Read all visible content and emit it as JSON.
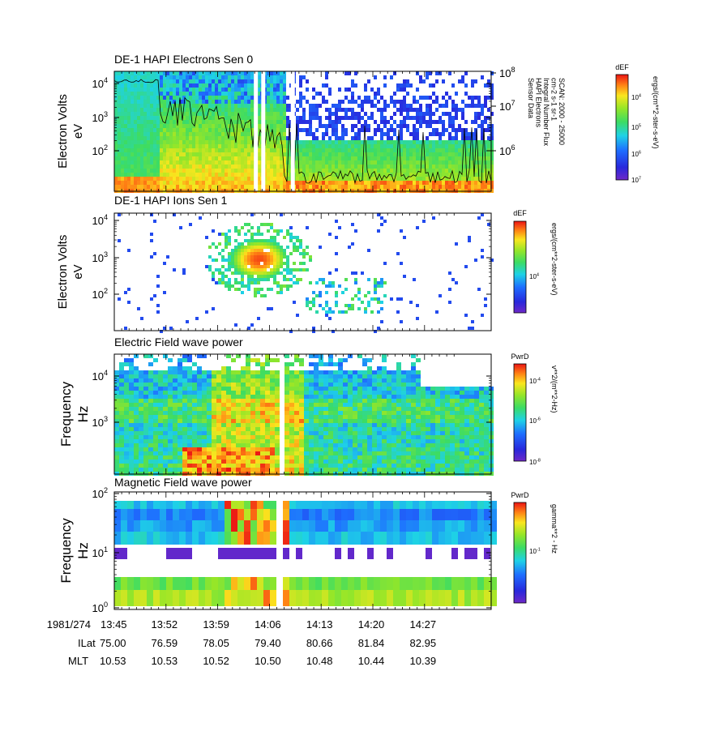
{
  "chart_data": [
    {
      "type": "heatmap",
      "title": "DE-1 HAPI Electrons Sen 0",
      "ylabel": "Electron Volts",
      "ylabel_unit": "eV",
      "y_scale": "log",
      "y_ticks": [
        {
          "base": "10",
          "exp": "2"
        },
        {
          "base": "10",
          "exp": "3"
        },
        {
          "base": "10",
          "exp": "4"
        }
      ],
      "ylim": [
        12,
        15000
      ],
      "right_axis_ticks": [
        {
          "base": "10",
          "exp": "6"
        },
        {
          "base": "10",
          "exp": "7"
        },
        {
          "base": "10",
          "exp": "8"
        }
      ],
      "right_axis_text": [
        "Sensor Data",
        "HAPI Electrons",
        "Integral Number Flux",
        "cm-2 s-1 sr-1",
        "SCAN: 2000 - 25000"
      ],
      "colorbar": {
        "label": "dEF",
        "unit": "ergs/(cm**2-ster-s-eV)",
        "ticks": [
          {
            "base": "10",
            "exp": "4"
          },
          {
            "base": "10",
            "exp": "5"
          },
          {
            "base": "10",
            "exp": "6"
          },
          {
            "base": "10",
            "exp": "7"
          }
        ]
      },
      "gaps_hhmm": [
        "14:04",
        "14:05",
        "14:09"
      ],
      "overlay_line": "integral number flux"
    },
    {
      "type": "heatmap",
      "title": "DE-1 HAPI Ions Sen 1",
      "ylabel": "Electron Volts",
      "ylabel_unit": "eV",
      "y_scale": "log",
      "y_ticks": [
        {
          "base": "10",
          "exp": "2"
        },
        {
          "base": "10",
          "exp": "3"
        },
        {
          "base": "10",
          "exp": "4"
        }
      ],
      "ylim": [
        10,
        15000
      ],
      "colorbar": {
        "label": "dEF",
        "unit": "ergs/(cm**2-ster-s-eV)",
        "ticks": [
          {
            "base": "10",
            "exp": "4"
          }
        ]
      }
    },
    {
      "type": "heatmap",
      "title": "Electric Field wave power",
      "ylabel": "Frequency",
      "ylabel_unit": "Hz",
      "y_scale": "log",
      "y_ticks": [
        {
          "base": "10",
          "exp": "3"
        },
        {
          "base": "10",
          "exp": "4"
        }
      ],
      "ylim": [
        150,
        20000
      ],
      "colorbar": {
        "label": "PwrD",
        "unit": "v**2/(m**2-Hz)",
        "ticks": [
          {
            "base": "10",
            "exp": "-4"
          },
          {
            "base": "10",
            "exp": "-6"
          },
          {
            "base": "10",
            "exp": "-8"
          }
        ]
      },
      "gaps_hhmm": [
        "14:07"
      ]
    },
    {
      "type": "heatmap",
      "title": "Magnetic Field wave power",
      "ylabel": "Frequency",
      "ylabel_unit": "Hz",
      "y_scale": "log",
      "y_ticks": [
        {
          "base": "10",
          "exp": "0"
        },
        {
          "base": "10",
          "exp": "1"
        },
        {
          "base": "10",
          "exp": "2"
        }
      ],
      "ylim": [
        1,
        100
      ],
      "colorbar": {
        "label": "PwrD",
        "unit": "gamma**2 - Hz",
        "ticks": [
          {
            "base": "10",
            "exp": "-1"
          }
        ]
      },
      "gaps_hhmm": [
        "14:07"
      ]
    }
  ],
  "x_axis": {
    "date": "1981/274",
    "times": [
      "13:45",
      "13:52",
      "13:59",
      "14:06",
      "14:13",
      "14:20",
      "14:27"
    ],
    "rows": [
      {
        "name": "ILat",
        "values": [
          "75.00",
          "76.59",
          "78.05",
          "79.40",
          "80.66",
          "81.84",
          "82.95"
        ]
      },
      {
        "name": "MLT",
        "values": [
          "10.53",
          "10.53",
          "10.52",
          "10.50",
          "10.48",
          "10.44",
          "10.39"
        ]
      }
    ]
  }
}
